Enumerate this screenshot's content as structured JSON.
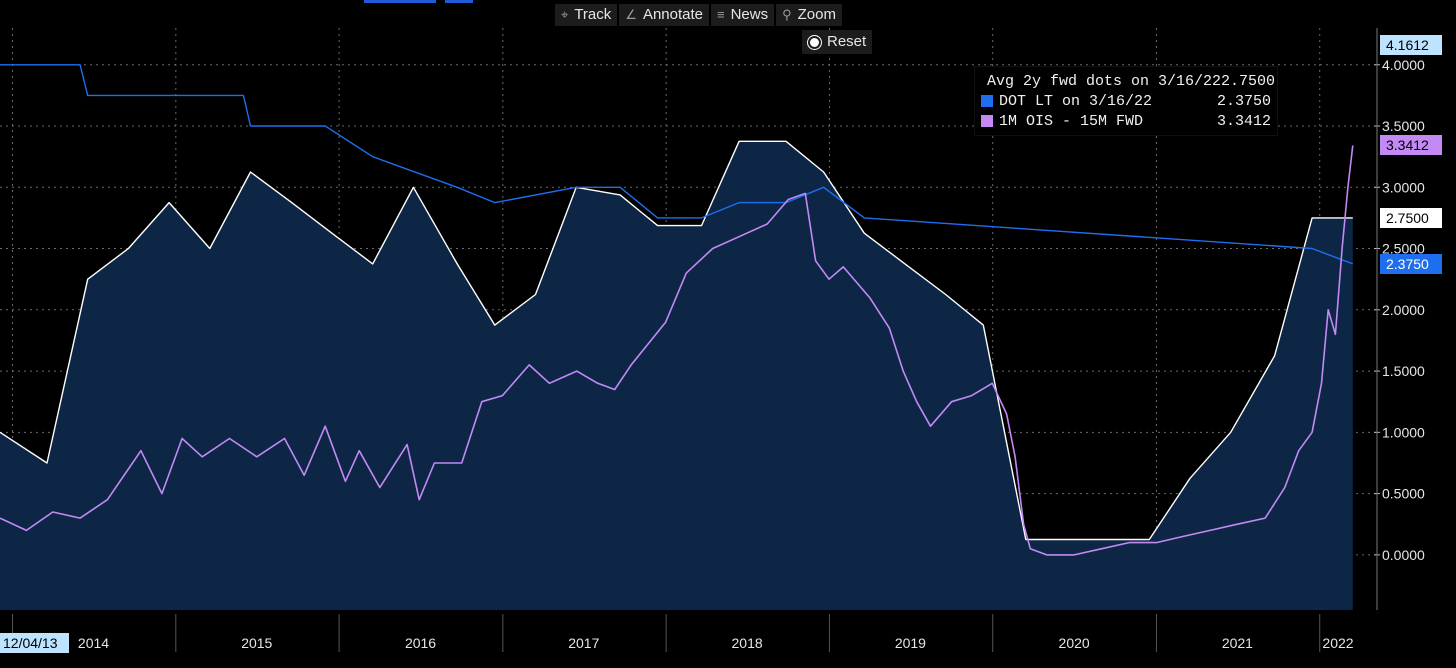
{
  "toolbar": {
    "track": {
      "icon": "crosshair-icon",
      "label": "Track"
    },
    "annotate": {
      "icon": "pencil-icon",
      "label": "Annotate"
    },
    "news": {
      "icon": "news-icon",
      "label": "News"
    },
    "zoom": {
      "icon": "magnifier-icon",
      "label": "Zoom"
    },
    "reset": {
      "icon": "radio-dot-icon",
      "label": "Reset"
    }
  },
  "legend": [
    {
      "name": "Avg 2y fwd dots on 3/16/22",
      "value": "2.7500",
      "color": "#ffffff"
    },
    {
      "name": "DOT LT on 3/16/22",
      "value": "2.3750",
      "color": "#1e6ff0"
    },
    {
      "name": "1M OIS - 15M FWD",
      "value": "3.3412",
      "color": "#c389f4"
    }
  ],
  "value_tags": [
    {
      "text": "4.1612",
      "value": 4.1612,
      "bg": "#bde3ff",
      "fg": "#000000"
    },
    {
      "text": "3.3412",
      "value": 3.3412,
      "bg": "#c389f4",
      "fg": "#000000"
    },
    {
      "text": "2.7500",
      "value": 2.75,
      "bg": "#ffffff",
      "fg": "#000000"
    },
    {
      "text": "2.3750",
      "value": 2.375,
      "bg": "#1e6ff0",
      "fg": "#ffffff"
    }
  ],
  "start_date_label": "12/04/13",
  "chart_data": {
    "type": "line",
    "y_ticks": [
      "0.0000",
      "0.5000",
      "1.0000",
      "1.5000",
      "2.0000",
      "2.5000",
      "3.0000",
      "3.5000",
      "4.0000"
    ],
    "ylim": [
      -0.45,
      4.3
    ],
    "xlim": [
      "2013-12-04",
      "2022-04-01"
    ],
    "x_ticks": [
      "2014",
      "2015",
      "2016",
      "2017",
      "2018",
      "2019",
      "2020",
      "2021",
      "2022"
    ],
    "grid": true,
    "legend_position": "top-right",
    "series": [
      {
        "name": "Avg 2y fwd dots on 3/16/22",
        "color": "#ffffff",
        "area_fill": "#0d2646",
        "x": [
          "2013-12-04",
          "2014-03-19",
          "2014-06-18",
          "2014-09-17",
          "2014-12-17",
          "2015-03-18",
          "2015-06-17",
          "2015-09-17",
          "2015-12-16",
          "2016-03-16",
          "2016-06-15",
          "2016-09-21",
          "2016-12-14",
          "2017-03-15",
          "2017-06-14",
          "2017-09-20",
          "2017-12-13",
          "2018-03-21",
          "2018-06-13",
          "2018-09-26",
          "2018-12-19",
          "2019-03-20",
          "2019-06-19",
          "2019-09-18",
          "2019-12-11",
          "2020-03-15",
          "2020-06-10",
          "2020-09-16",
          "2020-12-16",
          "2021-03-17",
          "2021-06-16",
          "2021-09-22",
          "2021-12-15",
          "2022-03-16"
        ],
        "y": [
          1.0,
          0.75,
          2.25,
          2.5,
          2.875,
          2.5,
          3.125,
          2.875,
          2.625,
          2.375,
          3.0,
          2.375,
          1.875,
          2.125,
          3.0,
          2.9375,
          2.6875,
          2.6875,
          3.375,
          3.375,
          3.125,
          2.625,
          2.375,
          2.125,
          1.875,
          0.125,
          0.125,
          0.125,
          0.125,
          0.625,
          1.0,
          1.625,
          2.75,
          2.75
        ]
      },
      {
        "name": "DOT LT on 3/16/22",
        "color": "#1e6ff0",
        "x": [
          "2013-12-04",
          "2014-06-01",
          "2014-06-18",
          "2015-06-01",
          "2015-06-17",
          "2015-12-01",
          "2016-03-16",
          "2016-09-21",
          "2016-12-14",
          "2017-06-14",
          "2017-09-20",
          "2017-12-13",
          "2018-03-21",
          "2018-06-13",
          "2018-09-26",
          "2018-12-19",
          "2019-03-20",
          "2021-12-15",
          "2022-03-16"
        ],
        "y": [
          4.0,
          4.0,
          3.75,
          3.75,
          3.5,
          3.5,
          3.25,
          3.0,
          2.875,
          3.0,
          3.0,
          2.75,
          2.75,
          2.875,
          2.875,
          3.0,
          2.75,
          2.5,
          2.375
        ]
      },
      {
        "name": "1M OIS - 15M FWD",
        "color": "#c389f4",
        "x": [
          "2013-12-04",
          "2014-02-01",
          "2014-04-01",
          "2014-06-01",
          "2014-08-01",
          "2014-10-15",
          "2014-12-01",
          "2015-01-15",
          "2015-03-01",
          "2015-05-01",
          "2015-07-01",
          "2015-09-01",
          "2015-10-15",
          "2015-12-01",
          "2016-01-15",
          "2016-02-15",
          "2016-04-01",
          "2016-06-01",
          "2016-06-28",
          "2016-08-01",
          "2016-10-01",
          "2016-11-15",
          "2016-12-31",
          "2017-03-01",
          "2017-04-15",
          "2017-06-15",
          "2017-08-01",
          "2017-09-08",
          "2017-10-15",
          "2017-12-31",
          "2018-02-15",
          "2018-04-15",
          "2018-06-15",
          "2018-08-15",
          "2018-10-01",
          "2018-11-08",
          "2018-12-01",
          "2018-12-31",
          "2019-02-01",
          "2019-04-01",
          "2019-05-15",
          "2019-06-15",
          "2019-07-15",
          "2019-08-15",
          "2019-10-01",
          "2019-11-15",
          "2019-12-31",
          "2020-02-01",
          "2020-02-20",
          "2020-03-10",
          "2020-03-25",
          "2020-05-01",
          "2020-07-01",
          "2020-09-01",
          "2020-11-01",
          "2021-01-01",
          "2021-03-01",
          "2021-05-01",
          "2021-07-01",
          "2021-09-01",
          "2021-10-15",
          "2021-11-15",
          "2021-12-15",
          "2022-01-05",
          "2022-01-20",
          "2022-02-05",
          "2022-02-20",
          "2022-03-05",
          "2022-03-16"
        ],
        "y": [
          0.3,
          0.2,
          0.35,
          0.3,
          0.45,
          0.85,
          0.5,
          0.95,
          0.8,
          0.95,
          0.8,
          0.95,
          0.65,
          1.05,
          0.6,
          0.85,
          0.55,
          0.9,
          0.45,
          0.75,
          0.75,
          1.25,
          1.3,
          1.55,
          1.4,
          1.5,
          1.4,
          1.35,
          1.55,
          1.9,
          2.3,
          2.5,
          2.6,
          2.7,
          2.9,
          2.95,
          2.4,
          2.25,
          2.35,
          2.1,
          1.85,
          1.5,
          1.25,
          1.05,
          1.25,
          1.3,
          1.4,
          1.15,
          0.8,
          0.25,
          0.05,
          0.0,
          0.0,
          0.05,
          0.1,
          0.1,
          0.15,
          0.2,
          0.25,
          0.3,
          0.55,
          0.85,
          1.0,
          1.4,
          2.0,
          1.8,
          2.5,
          3.0,
          3.3412
        ]
      }
    ]
  }
}
